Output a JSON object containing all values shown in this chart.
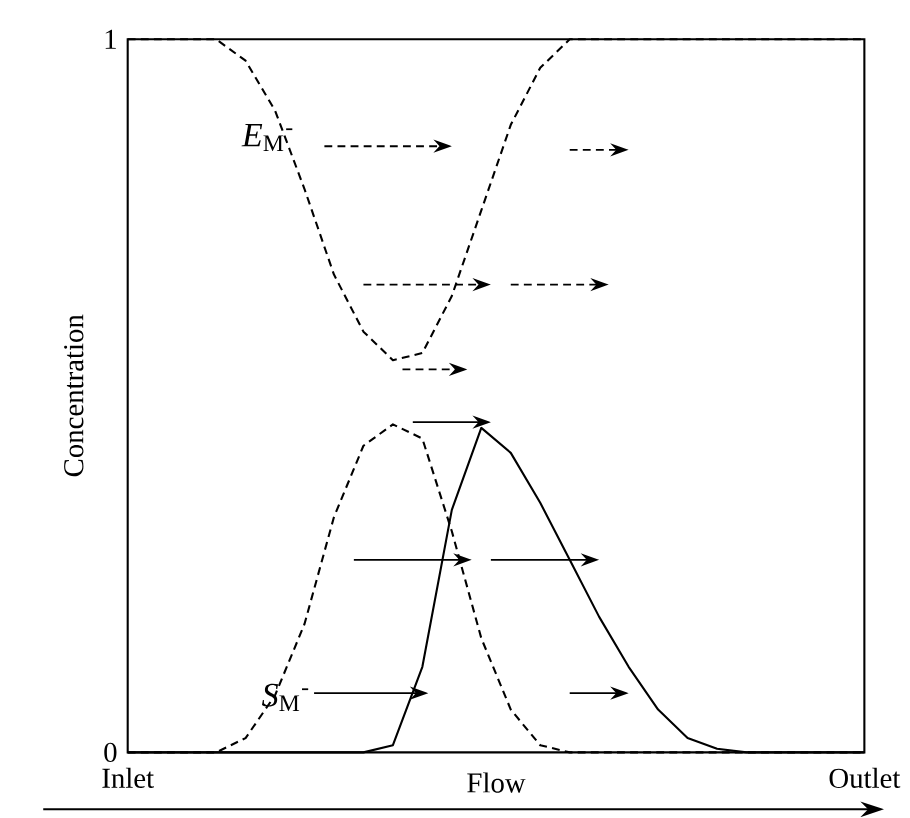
{
  "chart_data": {
    "type": "line",
    "ylabel": "Concentration",
    "xlabel": "Flow",
    "ylim": [
      0,
      1
    ],
    "yticks": [
      0,
      1
    ],
    "marker": "none",
    "categories": [
      "Inlet",
      null,
      null,
      null,
      null,
      null,
      null,
      null,
      null,
      null,
      null,
      null,
      null,
      null,
      null,
      null,
      null,
      null,
      null,
      null,
      null,
      null,
      null,
      null,
      null,
      "Outlet"
    ],
    "series": [
      {
        "color": "#000000",
        "line_style": "dashed",
        "values": [
          1,
          1,
          1,
          1,
          0.97,
          0.9,
          0.79,
          0.67,
          0.59,
          0.55,
          0.56,
          0.64,
          0.76,
          0.88,
          0.96,
          1,
          1,
          1,
          1,
          1,
          1,
          1,
          1,
          1,
          1,
          1
        ]
      },
      {
        "color": "#000000",
        "line_style": "dashed",
        "values": [
          0,
          0,
          0,
          0,
          0.02,
          0.08,
          0.18,
          0.33,
          0.43,
          0.46,
          0.44,
          0.31,
          0.16,
          0.06,
          0.01,
          0,
          0,
          0,
          0,
          0,
          0,
          0,
          0,
          0,
          0,
          0
        ]
      },
      {
        "color": "#000000",
        "line_style": "solid",
        "values": [
          0,
          0,
          0,
          0,
          0,
          0,
          0,
          0,
          0,
          0.01,
          0.12,
          0.34,
          0.455,
          0.42,
          0.35,
          0.27,
          0.19,
          0.12,
          0.06,
          0.02,
          0.005,
          0,
          0,
          0,
          0,
          0
        ]
      }
    ],
    "annotations": [
      "*E*$_{M}$$^{-}$",
      "*S*$_{M}$$^{-}$"
    ]
  }
}
